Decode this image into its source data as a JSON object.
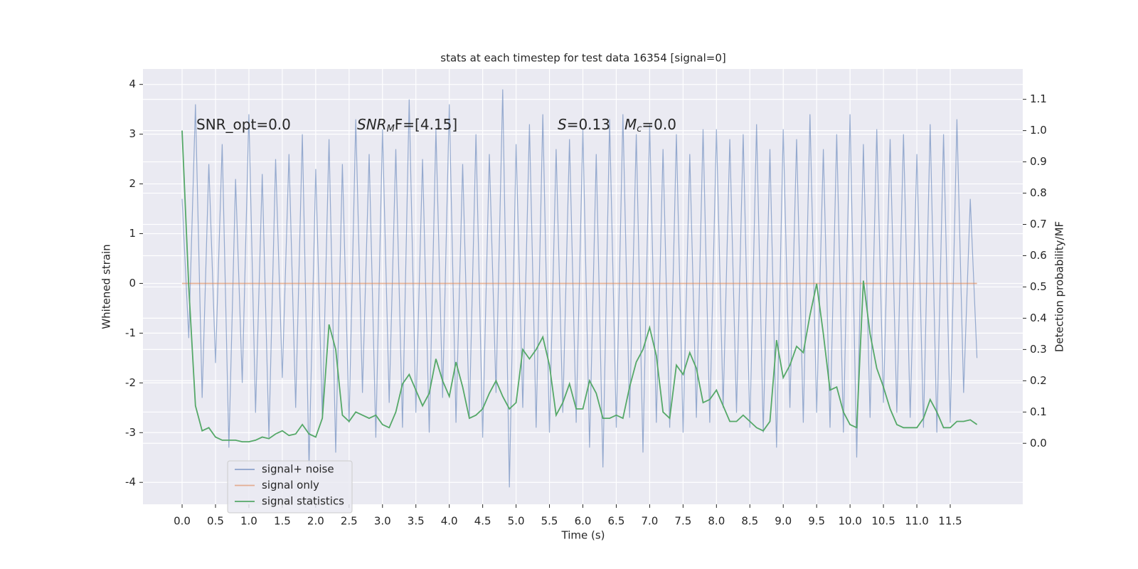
{
  "chart_data": {
    "type": "line",
    "title": "stats at each timestep for test data 16354 [signal=0]",
    "xlabel": "Time (s)",
    "ylabel": "Whitened strain",
    "y2label": "Detection probability/MF",
    "grid": true,
    "legend": "lower left",
    "annotations": [
      {
        "text": "SNR_opt=0.0"
      },
      {
        "italic": "SNR",
        "sub": "M",
        "tail": "F=[4.15]"
      },
      {
        "italic": "S",
        "tail": "=0.13"
      },
      {
        "italic": "M",
        "sub": "c",
        "tail": "=0.0"
      }
    ],
    "xlim": [
      -0.586,
      12.586
    ],
    "xticks": [
      {
        "value": 0,
        "label": "0.0"
      },
      0.5,
      {
        "value": 1,
        "label": "1.0"
      },
      1.5,
      {
        "value": 2,
        "label": "2.0"
      },
      2.5,
      {
        "value": 3,
        "label": "3.0"
      },
      3.5,
      {
        "value": 4,
        "label": "4.0"
      },
      4.5,
      {
        "value": 5,
        "label": "5.0"
      },
      5.5,
      {
        "value": 6,
        "label": "6.0"
      },
      6.5,
      {
        "value": 7,
        "label": "7.0"
      },
      7.5,
      {
        "value": 8,
        "label": "8.0"
      },
      8.5,
      {
        "value": 9,
        "label": "9.0"
      },
      9.5,
      {
        "value": 10,
        "label": "10.0"
      },
      10.5,
      {
        "value": 11,
        "label": "11.0"
      },
      11.5
    ],
    "ylim": [
      -4.44,
      4.31
    ],
    "yticks": [
      -4,
      -3,
      -2,
      -1,
      0,
      1,
      2,
      3,
      4
    ],
    "y2lim": [
      -0.195,
      1.197
    ],
    "y2ticks": [
      {
        "value": 0,
        "label": "0.0"
      },
      0.1,
      0.2,
      0.3,
      0.4,
      0.5,
      0.6,
      0.7,
      0.8,
      0.9,
      {
        "value": 1,
        "label": "1.0"
      },
      1.1
    ],
    "x": [
      0,
      0.1,
      0.2,
      0.3,
      0.4,
      0.5,
      0.6,
      0.7,
      0.8,
      0.9,
      1,
      1.1,
      1.2,
      1.3,
      1.4,
      1.5,
      1.6,
      1.7,
      1.8,
      1.9,
      2,
      2.1,
      2.2,
      2.3,
      2.4,
      2.5,
      2.6,
      2.7,
      2.8,
      2.9,
      3,
      3.1,
      3.2,
      3.3,
      3.4,
      3.5,
      3.6,
      3.7,
      3.8,
      3.9,
      4,
      4.1,
      4.2,
      4.3,
      4.4,
      4.5,
      4.6,
      4.7,
      4.8,
      4.9,
      5,
      5.1,
      5.2,
      5.3,
      5.4,
      5.5,
      5.6,
      5.7,
      5.8,
      5.9,
      6,
      6.1,
      6.2,
      6.3,
      6.4,
      6.5,
      6.6,
      6.7,
      6.8,
      6.9,
      7,
      7.1,
      7.2,
      7.3,
      7.4,
      7.5,
      7.6,
      7.7,
      7.8,
      7.9,
      8,
      8.1,
      8.2,
      8.3,
      8.4,
      8.5,
      8.6,
      8.7,
      8.8,
      8.9,
      9,
      9.1,
      9.2,
      9.3,
      9.4,
      9.5,
      9.6,
      9.7,
      9.8,
      9.9,
      10,
      10.1,
      10.2,
      10.3,
      10.4,
      10.5,
      10.6,
      10.7,
      10.8,
      10.9,
      11,
      11.1,
      11.2,
      11.3,
      11.4,
      11.5,
      11.6,
      11.7,
      11.8,
      11.9
    ],
    "series": [
      {
        "name": "signal+ noise",
        "color": "#4c72b0",
        "values": [
          1.7,
          -1.1,
          3.6,
          -2.3,
          2.4,
          -1.6,
          2.8,
          -3.3,
          2.1,
          -2.0,
          3.4,
          -2.6,
          2.2,
          -3.1,
          2.5,
          -1.9,
          2.6,
          -2.5,
          3.0,
          -3.7,
          2.3,
          -2.7,
          2.9,
          -3.4,
          2.4,
          -2.8,
          3.3,
          -2.2,
          2.6,
          -3.1,
          3.1,
          -2.4,
          2.7,
          -2.9,
          3.7,
          -2.6,
          2.5,
          -3.0,
          3.1,
          -2.3,
          3.6,
          -2.8,
          2.4,
          -2.7,
          3.0,
          -3.1,
          2.6,
          -2.2,
          3.9,
          -4.1,
          2.8,
          -2.5,
          3.2,
          -2.9,
          3.4,
          -3.0,
          2.7,
          -2.6,
          2.9,
          -2.8,
          3.1,
          -3.3,
          2.6,
          -3.7,
          3.3,
          -2.9,
          3.4,
          -2.7,
          3.0,
          -3.4,
          3.2,
          -2.8,
          2.7,
          -2.9,
          3.0,
          -3.0,
          2.6,
          -2.7,
          3.1,
          -2.8,
          3.1,
          -2.5,
          2.9,
          -2.6,
          3.0,
          -2.9,
          3.2,
          -3.0,
          2.7,
          -3.3,
          3.1,
          -2.5,
          2.9,
          -2.8,
          3.4,
          -2.6,
          2.7,
          -2.9,
          3.0,
          -3.0,
          3.4,
          -3.5,
          2.8,
          -2.7,
          3.1,
          -2.4,
          2.9,
          -2.6,
          3.0,
          -2.7,
          2.6,
          -2.9,
          3.2,
          -3.0,
          3.0,
          -2.8,
          3.3,
          -2.2,
          1.7,
          -1.5
        ]
      },
      {
        "name": "signal only",
        "color": "#dd8452",
        "values": [
          0,
          0,
          0,
          0,
          0,
          0,
          0,
          0,
          0,
          0,
          0,
          0,
          0,
          0,
          0,
          0,
          0,
          0,
          0,
          0,
          0,
          0,
          0,
          0,
          0,
          0,
          0,
          0,
          0,
          0,
          0,
          0,
          0,
          0,
          0,
          0,
          0,
          0,
          0,
          0,
          0,
          0,
          0,
          0,
          0,
          0,
          0,
          0,
          0,
          0,
          0,
          0,
          0,
          0,
          0,
          0,
          0,
          0,
          0,
          0,
          0,
          0,
          0,
          0,
          0,
          0,
          0,
          0,
          0,
          0,
          0,
          0,
          0,
          0,
          0,
          0,
          0,
          0,
          0,
          0,
          0,
          0,
          0,
          0,
          0,
          0,
          0,
          0,
          0,
          0,
          0,
          0,
          0,
          0,
          0,
          0,
          0,
          0,
          0,
          0,
          0,
          0,
          0,
          0,
          0,
          0,
          0,
          0,
          0,
          0,
          0,
          0,
          0,
          0,
          0,
          0,
          0,
          0,
          0,
          0
        ]
      },
      {
        "name": "signal statistics",
        "color": "#55a868",
        "axis": "y2",
        "values": [
          1.0,
          0.5,
          0.12,
          0.04,
          0.05,
          0.02,
          0.01,
          0.01,
          0.01,
          0.005,
          0.005,
          0.01,
          0.02,
          0.015,
          0.03,
          0.04,
          0.025,
          0.03,
          0.06,
          0.03,
          0.02,
          0.08,
          0.38,
          0.3,
          0.09,
          0.07,
          0.1,
          0.09,
          0.08,
          0.09,
          0.06,
          0.05,
          0.1,
          0.19,
          0.22,
          0.17,
          0.12,
          0.16,
          0.27,
          0.2,
          0.15,
          0.26,
          0.18,
          0.08,
          0.09,
          0.11,
          0.16,
          0.2,
          0.15,
          0.11,
          0.13,
          0.3,
          0.27,
          0.3,
          0.34,
          0.25,
          0.09,
          0.13,
          0.19,
          0.11,
          0.11,
          0.2,
          0.16,
          0.08,
          0.08,
          0.09,
          0.08,
          0.18,
          0.26,
          0.3,
          0.37,
          0.28,
          0.1,
          0.08,
          0.25,
          0.22,
          0.29,
          0.24,
          0.13,
          0.14,
          0.17,
          0.12,
          0.07,
          0.07,
          0.09,
          0.07,
          0.05,
          0.04,
          0.07,
          0.33,
          0.21,
          0.25,
          0.31,
          0.29,
          0.41,
          0.51,
          0.35,
          0.17,
          0.18,
          0.1,
          0.06,
          0.05,
          0.52,
          0.35,
          0.24,
          0.18,
          0.11,
          0.06,
          0.05,
          0.05,
          0.05,
          0.08,
          0.14,
          0.1,
          0.05,
          0.05,
          0.07,
          0.07,
          0.075,
          0.06
        ]
      }
    ]
  }
}
